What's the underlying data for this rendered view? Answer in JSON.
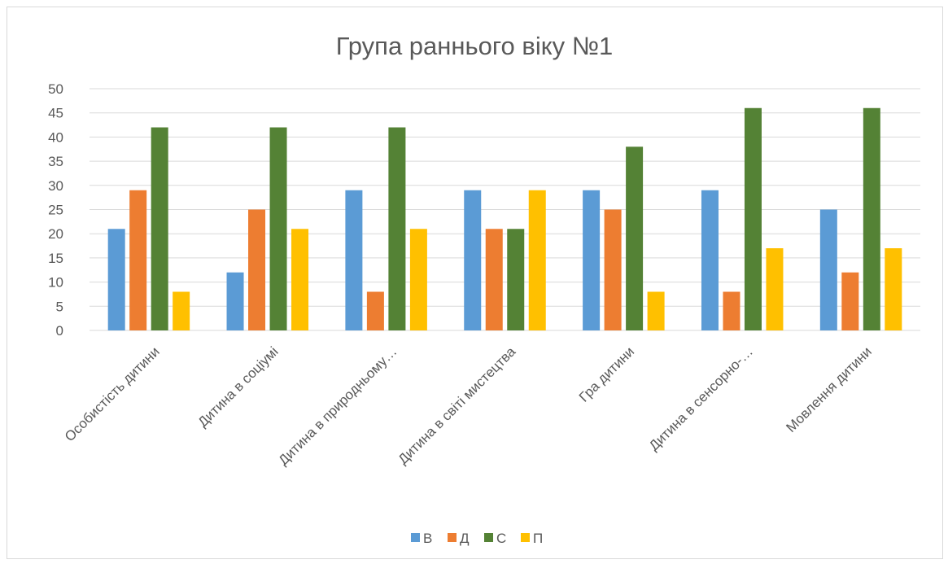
{
  "chart_data": {
    "type": "bar",
    "title": "Група раннього віку №1",
    "categories": [
      "Особистість дитини",
      "Дитина в соціумі",
      "Дитина в природньому…",
      "Дитина в світі мистецтва",
      "Гра дитини",
      "Дитина в сенсорно-…",
      "Мовлення дитини"
    ],
    "series": [
      {
        "name": "В",
        "color": "#5b9bd5",
        "values": [
          21,
          12,
          29,
          29,
          29,
          29,
          25
        ]
      },
      {
        "name": "Д",
        "color": "#ed7d31",
        "values": [
          29,
          25,
          8,
          21,
          25,
          8,
          12
        ]
      },
      {
        "name": "С",
        "color": "#548235",
        "values": [
          42,
          42,
          42,
          21,
          38,
          46,
          46
        ]
      },
      {
        "name": "П",
        "color": "#ffc000",
        "values": [
          8,
          21,
          21,
          29,
          8,
          17,
          17
        ]
      }
    ],
    "yticks": [
      "0",
      "5",
      "10",
      "15",
      "20",
      "25",
      "30",
      "35",
      "40",
      "45",
      "50"
    ],
    "ylim": [
      0,
      50
    ],
    "xlabel": "",
    "ylabel": "",
    "grid": true,
    "legend_position": "bottom"
  }
}
